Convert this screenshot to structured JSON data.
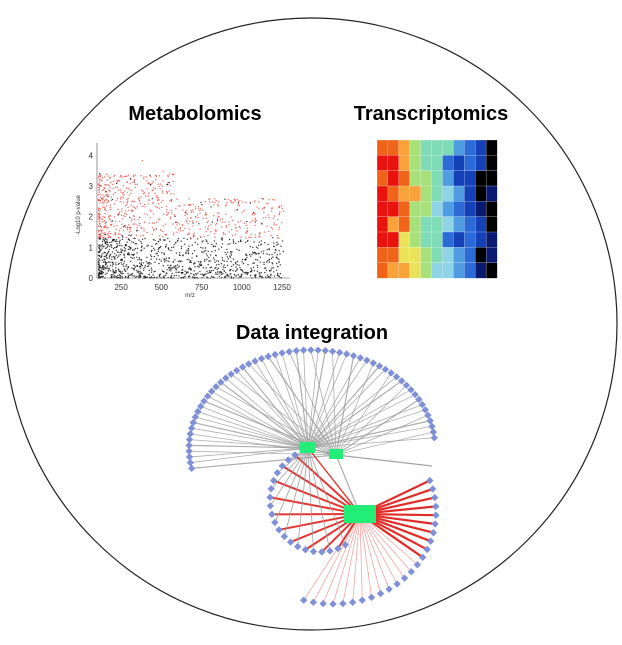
{
  "labels": {
    "metabolomics": "Metabolomics",
    "transcriptomics": "Transcriptomics",
    "integration": "Data integration"
  },
  "scatter": {
    "xlabel": "m/z",
    "ylabel": "-Log10 p-value",
    "xlim": [
      100,
      1300
    ],
    "ylim": [
      0,
      4.4
    ],
    "xticks": [
      250,
      500,
      750,
      1000,
      1250
    ],
    "yticks": [
      0,
      1,
      2,
      3,
      4
    ],
    "threshold": 1.3,
    "colors": {
      "significant": "#e8453c",
      "other": "#111111"
    }
  },
  "heatmap": {
    "rows": 9,
    "cols": 11,
    "palette": [
      "#e8130f",
      "#f0641a",
      "#f9a23a",
      "#e9e35a",
      "#a8e07a",
      "#7fdcb6",
      "#8fd3e6",
      "#4f9de0",
      "#2c6ad6",
      "#1440b8",
      "#0a1a70",
      "#000000"
    ]
  },
  "network": {
    "colors": {
      "node": "#8090d8",
      "hub": "#22ee77",
      "gray_edge": "#9a9a9a",
      "red_edge": "#e0201b"
    }
  }
}
